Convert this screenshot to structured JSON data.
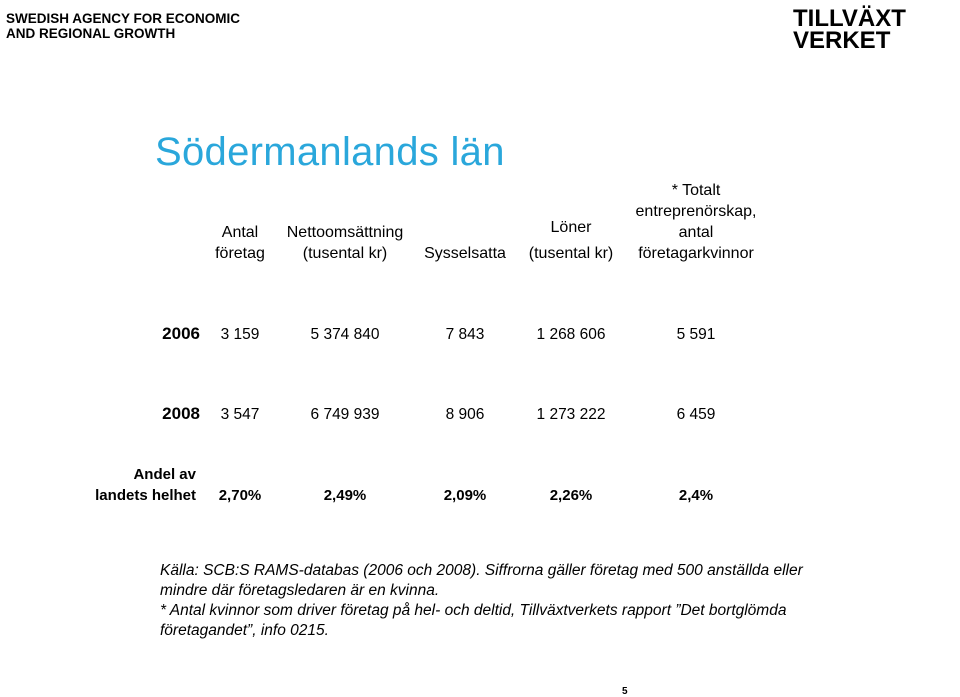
{
  "agency": {
    "line1": "SWEDISH AGENCY FOR ECONOMIC",
    "line2": "AND REGIONAL GROWTH"
  },
  "logo": {
    "line1": "TILLVÄXT",
    "line2": "VERKET"
  },
  "title": "Södermanlands län",
  "columns": [
    {
      "lines": [
        "Antal",
        "företag"
      ]
    },
    {
      "lines": [
        "Nettoomsättning",
        "(tusental kr)"
      ]
    },
    {
      "lines": [
        "Sysselsatta"
      ]
    },
    {
      "lines": [
        "Löner",
        "(tusental kr)"
      ]
    },
    {
      "lines": [
        "* Totalt",
        "entreprenörskap,",
        "antal",
        "företagarkvinnor"
      ]
    }
  ],
  "rows": [
    {
      "label": "2006",
      "values": [
        "3 159",
        "5 374 840",
        "7 843",
        "1 268 606",
        "5 591"
      ]
    },
    {
      "label": "2008",
      "values": [
        "3 547",
        "6 749 939",
        "8 906",
        "1 273 222",
        "6 459"
      ]
    },
    {
      "label_lines": [
        "Andel av",
        "landets helhet"
      ],
      "values": [
        "2,70%",
        "2,49%",
        "2,09%",
        "2,26%",
        "2,4%"
      ]
    }
  ],
  "source_lines": [
    "Källa: SCB:S RAMS-databas (2006 och 2008). Siffrorna gäller företag med 500 anställda eller",
    "mindre där företagsledaren är en kvinna.",
    "* Antal kvinnor som driver företag på hel- och deltid, Tillväxtverkets rapport ”Det bortglömda",
    "företagandet”, info 0215."
  ],
  "page_number": "5"
}
